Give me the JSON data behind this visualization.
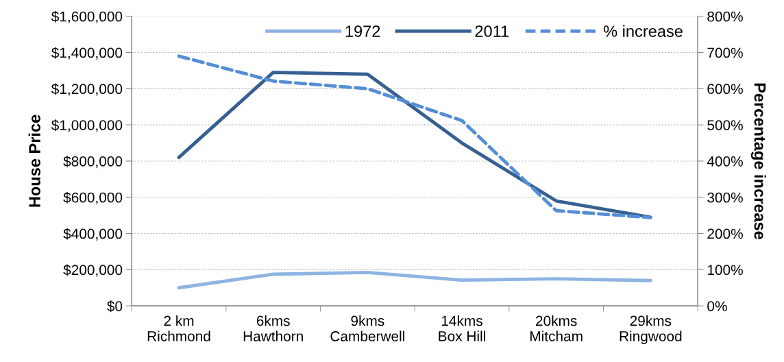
{
  "chart_data": {
    "type": "line",
    "categories": [
      "2 km\nRichmond",
      "6kms\nHawthorn",
      "9kms\nCamberwell",
      "14kms\nBox Hill",
      "20kms\nMitcham",
      "29kms\nRingwood"
    ],
    "series": [
      {
        "name": "1972",
        "color": "#8db4e2",
        "values": [
          100000,
          175000,
          185000,
          142000,
          150000,
          140000
        ]
      },
      {
        "name": "2011",
        "color": "#376092",
        "values": [
          820000,
          1290000,
          1280000,
          900000,
          580000,
          490000
        ]
      },
      {
        "name": "% increase",
        "color": "#558ed5",
        "axis": "y2",
        "line_style": "dashed",
        "values": [
          690,
          621,
          600,
          512,
          263,
          244
        ]
      }
    ],
    "ylabel": "House Price",
    "y2label": "Percentage increase",
    "ylim": [
      0,
      1600000
    ],
    "yticks": [
      {
        "value": 0,
        "label": "$0"
      },
      {
        "value": 200000,
        "label": "$200,000"
      },
      {
        "value": 400000,
        "label": "$400,000"
      },
      {
        "value": 600000,
        "label": "$600,000"
      },
      {
        "value": 800000,
        "label": "$800,000"
      },
      {
        "value": 1000000,
        "label": "$1,000,000"
      },
      {
        "value": 1200000,
        "label": "$1,200,000"
      },
      {
        "value": 1400000,
        "label": "$1,400,000"
      },
      {
        "value": 1600000,
        "label": "$1,600,000"
      }
    ],
    "y2lim": [
      0,
      800
    ],
    "y2ticks": [
      {
        "value": 0,
        "label": "0%"
      },
      {
        "value": 100,
        "label": "100%"
      },
      {
        "value": 200,
        "label": "200%"
      },
      {
        "value": 300,
        "label": "300%"
      },
      {
        "value": 400,
        "label": "400%"
      },
      {
        "value": 500,
        "label": "500%"
      },
      {
        "value": 600,
        "label": "600%"
      },
      {
        "value": 700,
        "label": "700%"
      },
      {
        "value": 800,
        "label": "800%"
      }
    ],
    "grid": "y",
    "legend": "top right",
    "line_style": "solid",
    "marker": "none"
  }
}
